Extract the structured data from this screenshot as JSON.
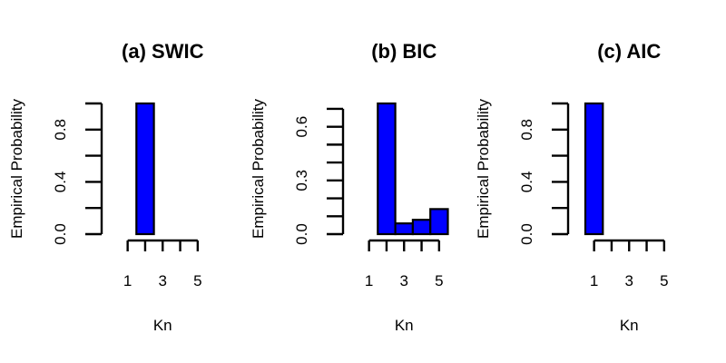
{
  "chart_data": [
    {
      "type": "bar",
      "title": "(a) SWIC",
      "xlabel": "Kn",
      "ylabel": "Empirical Probability",
      "categories": [
        "1",
        "2",
        "3",
        "4",
        "5"
      ],
      "x_tick_labels": [
        "1",
        "3",
        "5"
      ],
      "values": [
        0,
        1.0,
        0,
        0,
        0
      ],
      "ylim": [
        0,
        1.0
      ],
      "y_ticks": [
        0.0,
        0.4,
        0.8
      ],
      "y_tick_labels": [
        "0.0",
        "0.4",
        "0.8"
      ],
      "y_minor_ticks": [
        0.0,
        0.2,
        0.4,
        0.6,
        0.8,
        1.0
      ],
      "bar_color": "#0000ff",
      "grid": false
    },
    {
      "type": "bar",
      "title": "(b) BIC",
      "xlabel": "Kn",
      "ylabel": "Empirical Probability",
      "categories": [
        "1",
        "2",
        "3",
        "4",
        "5"
      ],
      "x_tick_labels": [
        "1",
        "3",
        "5"
      ],
      "values": [
        0,
        0.73,
        0.06,
        0.08,
        0.14
      ],
      "ylim": [
        0,
        0.73
      ],
      "y_ticks": [
        0.0,
        0.3,
        0.6
      ],
      "y_tick_labels": [
        "0.0",
        "0.3",
        "0.6"
      ],
      "y_minor_ticks": [
        0.0,
        0.1,
        0.2,
        0.3,
        0.4,
        0.5,
        0.6,
        0.7
      ],
      "bar_color": "#0000ff",
      "grid": false
    },
    {
      "type": "bar",
      "title": "(c) AIC",
      "xlabel": "Kn",
      "ylabel": "Empirical Probability",
      "categories": [
        "1",
        "2",
        "3",
        "4",
        "5"
      ],
      "x_tick_labels": [
        "1",
        "3",
        "5"
      ],
      "values": [
        1.0,
        0,
        0,
        0,
        0
      ],
      "ylim": [
        0,
        1.0
      ],
      "y_ticks": [
        0.0,
        0.4,
        0.8
      ],
      "y_tick_labels": [
        "0.0",
        "0.4",
        "0.8"
      ],
      "y_minor_ticks": [
        0.0,
        0.2,
        0.4,
        0.6,
        0.8,
        1.0
      ],
      "bar_color": "#0000ff",
      "grid": false
    }
  ]
}
